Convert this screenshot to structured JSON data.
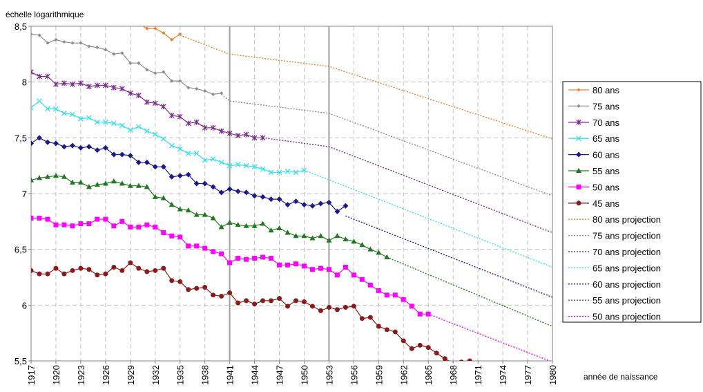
{
  "chart_data": {
    "type": "line",
    "ylabel": "échelle logarithmique",
    "xlabel": "année de naissance",
    "ylim": [
      5.5,
      8.5
    ],
    "yticks": [
      "5,5",
      "6",
      "6,5",
      "7",
      "7,5",
      "8",
      "8,5"
    ],
    "ytick_values": [
      5.5,
      6,
      6.5,
      7,
      7.5,
      8,
      8.5
    ],
    "xlim": [
      1917,
      1980
    ],
    "xticks": [
      "1917",
      "1920",
      "1923",
      "1926",
      "1929",
      "1932",
      "1935",
      "1938",
      "1941",
      "1944",
      "1947",
      "1950",
      "1953",
      "1956",
      "1959",
      "1962",
      "1965",
      "1968",
      "1971",
      "1974",
      "1977",
      "1980"
    ],
    "xtick_values": [
      1917,
      1920,
      1923,
      1926,
      1929,
      1932,
      1935,
      1938,
      1941,
      1944,
      1947,
      1950,
      1953,
      1956,
      1959,
      1962,
      1965,
      1968,
      1971,
      1974,
      1977,
      1980
    ],
    "vertical_lines": [
      1941,
      1953
    ],
    "grid": true,
    "legend_position": "right",
    "series": [
      {
        "name": "80 ans",
        "color": "#F07E26",
        "style": "solid",
        "marker": "diamond-small",
        "x": [
          1930,
          1931,
          1932,
          1933,
          1934,
          1935
        ],
        "y": [
          8.52,
          8.48,
          8.48,
          8.44,
          8.38,
          8.43
        ]
      },
      {
        "name": "75 ans",
        "color": "#8C8C8C",
        "style": "solid",
        "marker": "diamond-small",
        "x": [
          1917,
          1918,
          1919,
          1920,
          1921,
          1922,
          1923,
          1924,
          1925,
          1926,
          1927,
          1928,
          1929,
          1930,
          1931,
          1932,
          1933,
          1934,
          1935,
          1936,
          1937,
          1938,
          1939,
          1940
        ],
        "y": [
          8.43,
          8.42,
          8.35,
          8.38,
          8.36,
          8.35,
          8.35,
          8.32,
          8.31,
          8.29,
          8.25,
          8.26,
          8.17,
          8.17,
          8.11,
          8.08,
          8.09,
          8.01,
          8.01,
          7.95,
          7.94,
          7.92,
          7.89,
          7.9
        ]
      },
      {
        "name": "70 ans",
        "color": "#7B2C8C",
        "style": "solid",
        "marker": "star",
        "x": [
          1917,
          1918,
          1919,
          1920,
          1921,
          1922,
          1923,
          1924,
          1925,
          1926,
          1927,
          1928,
          1929,
          1930,
          1931,
          1932,
          1933,
          1934,
          1935,
          1936,
          1937,
          1938,
          1939,
          1940,
          1941,
          1942,
          1943,
          1944,
          1945
        ],
        "y": [
          8.09,
          8.05,
          8.05,
          7.98,
          7.99,
          7.98,
          7.99,
          7.96,
          7.97,
          7.97,
          7.95,
          7.94,
          7.9,
          7.88,
          7.82,
          7.81,
          7.78,
          7.7,
          7.69,
          7.63,
          7.64,
          7.59,
          7.59,
          7.56,
          7.54,
          7.52,
          7.53,
          7.5,
          7.5
        ]
      },
      {
        "name": "65 ans",
        "color": "#33E0F0",
        "style": "solid",
        "marker": "x",
        "x": [
          1917,
          1918,
          1919,
          1920,
          1921,
          1922,
          1923,
          1924,
          1925,
          1926,
          1927,
          1928,
          1929,
          1930,
          1931,
          1932,
          1933,
          1934,
          1935,
          1936,
          1937,
          1938,
          1939,
          1940,
          1941,
          1942,
          1943,
          1944,
          1945,
          1946,
          1947,
          1948,
          1949,
          1950
        ],
        "y": [
          7.77,
          7.83,
          7.76,
          7.76,
          7.72,
          7.71,
          7.67,
          7.68,
          7.64,
          7.64,
          7.63,
          7.61,
          7.57,
          7.6,
          7.56,
          7.53,
          7.49,
          7.43,
          7.4,
          7.36,
          7.36,
          7.3,
          7.31,
          7.28,
          7.25,
          7.26,
          7.25,
          7.24,
          7.22,
          7.19,
          7.19,
          7.2,
          7.19,
          7.21
        ]
      },
      {
        "name": "60 ans",
        "color": "#1A1A8C",
        "style": "solid",
        "marker": "diamond",
        "x": [
          1917,
          1918,
          1919,
          1920,
          1921,
          1922,
          1923,
          1924,
          1925,
          1926,
          1927,
          1928,
          1929,
          1930,
          1931,
          1932,
          1933,
          1934,
          1935,
          1936,
          1937,
          1938,
          1939,
          1940,
          1941,
          1942,
          1943,
          1944,
          1945,
          1946,
          1947,
          1948,
          1949,
          1950,
          1951,
          1952,
          1953,
          1954,
          1955
        ],
        "y": [
          7.45,
          7.5,
          7.46,
          7.45,
          7.42,
          7.43,
          7.41,
          7.42,
          7.39,
          7.41,
          7.35,
          7.35,
          7.34,
          7.28,
          7.28,
          7.24,
          7.24,
          7.15,
          7.16,
          7.17,
          7.09,
          7.09,
          7.06,
          7.01,
          7.04,
          7.02,
          7.01,
          6.98,
          6.97,
          6.95,
          6.95,
          6.9,
          6.93,
          6.9,
          6.89,
          6.91,
          6.92,
          6.84,
          6.89
        ]
      },
      {
        "name": "55 ans",
        "color": "#1E7A1E",
        "style": "solid",
        "marker": "triangle",
        "x": [
          1917,
          1918,
          1919,
          1920,
          1921,
          1922,
          1923,
          1924,
          1925,
          1926,
          1927,
          1928,
          1929,
          1930,
          1931,
          1932,
          1933,
          1934,
          1935,
          1936,
          1937,
          1938,
          1939,
          1940,
          1941,
          1942,
          1943,
          1944,
          1945,
          1946,
          1947,
          1948,
          1949,
          1950,
          1951,
          1952,
          1953,
          1954,
          1955,
          1956,
          1957,
          1958,
          1959,
          1960
        ],
        "y": [
          7.12,
          7.14,
          7.15,
          7.16,
          7.15,
          7.1,
          7.1,
          7.06,
          7.08,
          7.09,
          7.11,
          7.09,
          7.07,
          7.07,
          7.06,
          6.97,
          6.96,
          6.9,
          6.86,
          6.85,
          6.81,
          6.81,
          6.78,
          6.7,
          6.74,
          6.72,
          6.71,
          6.71,
          6.73,
          6.67,
          6.69,
          6.65,
          6.62,
          6.62,
          6.6,
          6.62,
          6.58,
          6.62,
          6.59,
          6.57,
          6.54,
          6.5,
          6.47,
          6.43
        ]
      },
      {
        "name": "50 ans",
        "color": "#FF00FF",
        "style": "solid",
        "marker": "square",
        "x": [
          1917,
          1918,
          1919,
          1920,
          1921,
          1922,
          1923,
          1924,
          1925,
          1926,
          1927,
          1928,
          1929,
          1930,
          1931,
          1932,
          1933,
          1934,
          1935,
          1936,
          1937,
          1938,
          1939,
          1940,
          1941,
          1942,
          1943,
          1944,
          1945,
          1946,
          1947,
          1948,
          1949,
          1950,
          1951,
          1952,
          1953,
          1954,
          1955,
          1956,
          1957,
          1958,
          1959,
          1960,
          1961,
          1962,
          1963,
          1964,
          1965
        ],
        "y": [
          6.78,
          6.78,
          6.77,
          6.72,
          6.72,
          6.71,
          6.73,
          6.73,
          6.77,
          6.77,
          6.71,
          6.75,
          6.7,
          6.7,
          6.72,
          6.7,
          6.65,
          6.62,
          6.61,
          6.53,
          6.53,
          6.51,
          6.48,
          6.46,
          6.38,
          6.42,
          6.41,
          6.42,
          6.43,
          6.42,
          6.36,
          6.36,
          6.37,
          6.35,
          6.32,
          6.33,
          6.32,
          6.27,
          6.34,
          6.27,
          6.23,
          6.18,
          6.13,
          6.09,
          6.09,
          6.05,
          5.99,
          5.92,
          5.92
        ]
      },
      {
        "name": "45 ans",
        "color": "#8B1A1A",
        "style": "solid",
        "marker": "circle",
        "x": [
          1917,
          1918,
          1919,
          1920,
          1921,
          1922,
          1923,
          1924,
          1925,
          1926,
          1927,
          1928,
          1929,
          1930,
          1931,
          1932,
          1933,
          1934,
          1935,
          1936,
          1937,
          1938,
          1939,
          1940,
          1941,
          1942,
          1943,
          1944,
          1945,
          1946,
          1947,
          1948,
          1949,
          1950,
          1951,
          1952,
          1953,
          1954,
          1955,
          1956,
          1957,
          1958,
          1959,
          1960,
          1961,
          1962,
          1963,
          1964,
          1965,
          1966,
          1967,
          1968,
          1969,
          1970
        ],
        "y": [
          6.31,
          6.28,
          6.28,
          6.33,
          6.28,
          6.31,
          6.33,
          6.32,
          6.27,
          6.28,
          6.34,
          6.31,
          6.38,
          6.33,
          6.3,
          6.31,
          6.33,
          6.22,
          6.21,
          6.14,
          6.15,
          6.16,
          6.09,
          6.08,
          6.11,
          6.02,
          6.04,
          6.01,
          6.04,
          6.04,
          6.06,
          5.99,
          6.04,
          6.03,
          5.99,
          5.95,
          5.98,
          5.96,
          5.98,
          5.99,
          5.88,
          5.89,
          5.81,
          5.78,
          5.76,
          5.68,
          5.61,
          5.64,
          5.62,
          5.57,
          5.52,
          5.48,
          5.49,
          5.5
        ]
      },
      {
        "name": "80 ans projection",
        "color": "#F07E26",
        "style": "dotted",
        "x": [
          1935,
          1941,
          1953,
          1980
        ],
        "y": [
          8.42,
          8.25,
          8.14,
          7.49
        ]
      },
      {
        "name": "75 ans projection",
        "color": "#8C8C8C",
        "style": "dotted",
        "x": [
          1940,
          1941,
          1953,
          1980
        ],
        "y": [
          7.89,
          7.83,
          7.72,
          6.98
        ]
      },
      {
        "name": "70 ans projection",
        "color": "#7B2C8C",
        "style": "dotted",
        "x": [
          1945,
          1953,
          1980
        ],
        "y": [
          7.5,
          7.42,
          6.65
        ]
      },
      {
        "name": "65 ans projection",
        "color": "#33E0F0",
        "style": "dotted",
        "x": [
          1950,
          1980
        ],
        "y": [
          7.21,
          6.34
        ]
      },
      {
        "name": "60 ans projection",
        "color": "#1A1A8C",
        "style": "dotted",
        "x": [
          1955,
          1980
        ],
        "y": [
          6.8,
          6.07
        ]
      },
      {
        "name": "55 ans projection",
        "color": "#1E7A1E",
        "style": "dotted",
        "x": [
          1960,
          1980
        ],
        "y": [
          6.43,
          5.81
        ]
      },
      {
        "name": "50 ans projection",
        "color": "#FF00FF",
        "style": "dotted",
        "x": [
          1965,
          1980
        ],
        "y": [
          5.92,
          5.49
        ]
      }
    ]
  }
}
